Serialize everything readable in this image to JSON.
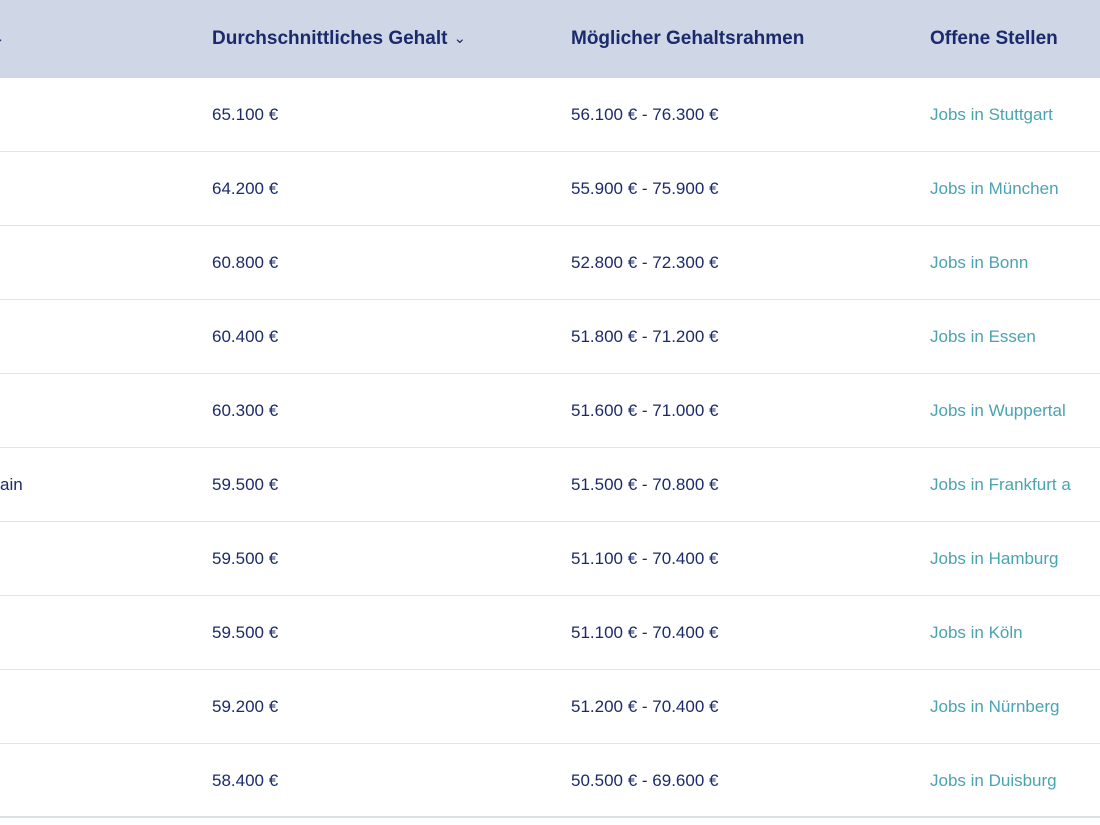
{
  "header": {
    "avg_label": "Durchschnittliches Gehalt",
    "range_label": "Möglicher Gehaltsrahmen",
    "jobs_label": "Offene Stellen"
  },
  "rows": [
    {
      "city": "",
      "avg": "65.100 €",
      "range": "56.100 € - 76.300 €",
      "jobs": "Jobs in Stuttgart"
    },
    {
      "city": "",
      "avg": "64.200 €",
      "range": "55.900 € - 75.900 €",
      "jobs": "Jobs in München"
    },
    {
      "city": "",
      "avg": "60.800 €",
      "range": "52.800 € - 72.300 €",
      "jobs": "Jobs in Bonn"
    },
    {
      "city": "",
      "avg": "60.400 €",
      "range": "51.800 € - 71.200 €",
      "jobs": "Jobs in Essen"
    },
    {
      "city": "",
      "avg": "60.300 €",
      "range": "51.600 € - 71.000 €",
      "jobs": "Jobs in Wuppertal"
    },
    {
      "city": "ain",
      "avg": "59.500 €",
      "range": "51.500 € - 70.800 €",
      "jobs": "Jobs in Frankfurt a"
    },
    {
      "city": "",
      "avg": "59.500 €",
      "range": "51.100 € - 70.400 €",
      "jobs": "Jobs in Hamburg"
    },
    {
      "city": "",
      "avg": "59.500 €",
      "range": "51.100 € - 70.400 €",
      "jobs": "Jobs in Köln"
    },
    {
      "city": "",
      "avg": "59.200 €",
      "range": "51.200 € - 70.400 €",
      "jobs": "Jobs in Nürnberg"
    },
    {
      "city": "",
      "avg": "58.400 €",
      "range": "50.500 € - 69.600 €",
      "jobs": "Jobs in Duisburg"
    }
  ]
}
